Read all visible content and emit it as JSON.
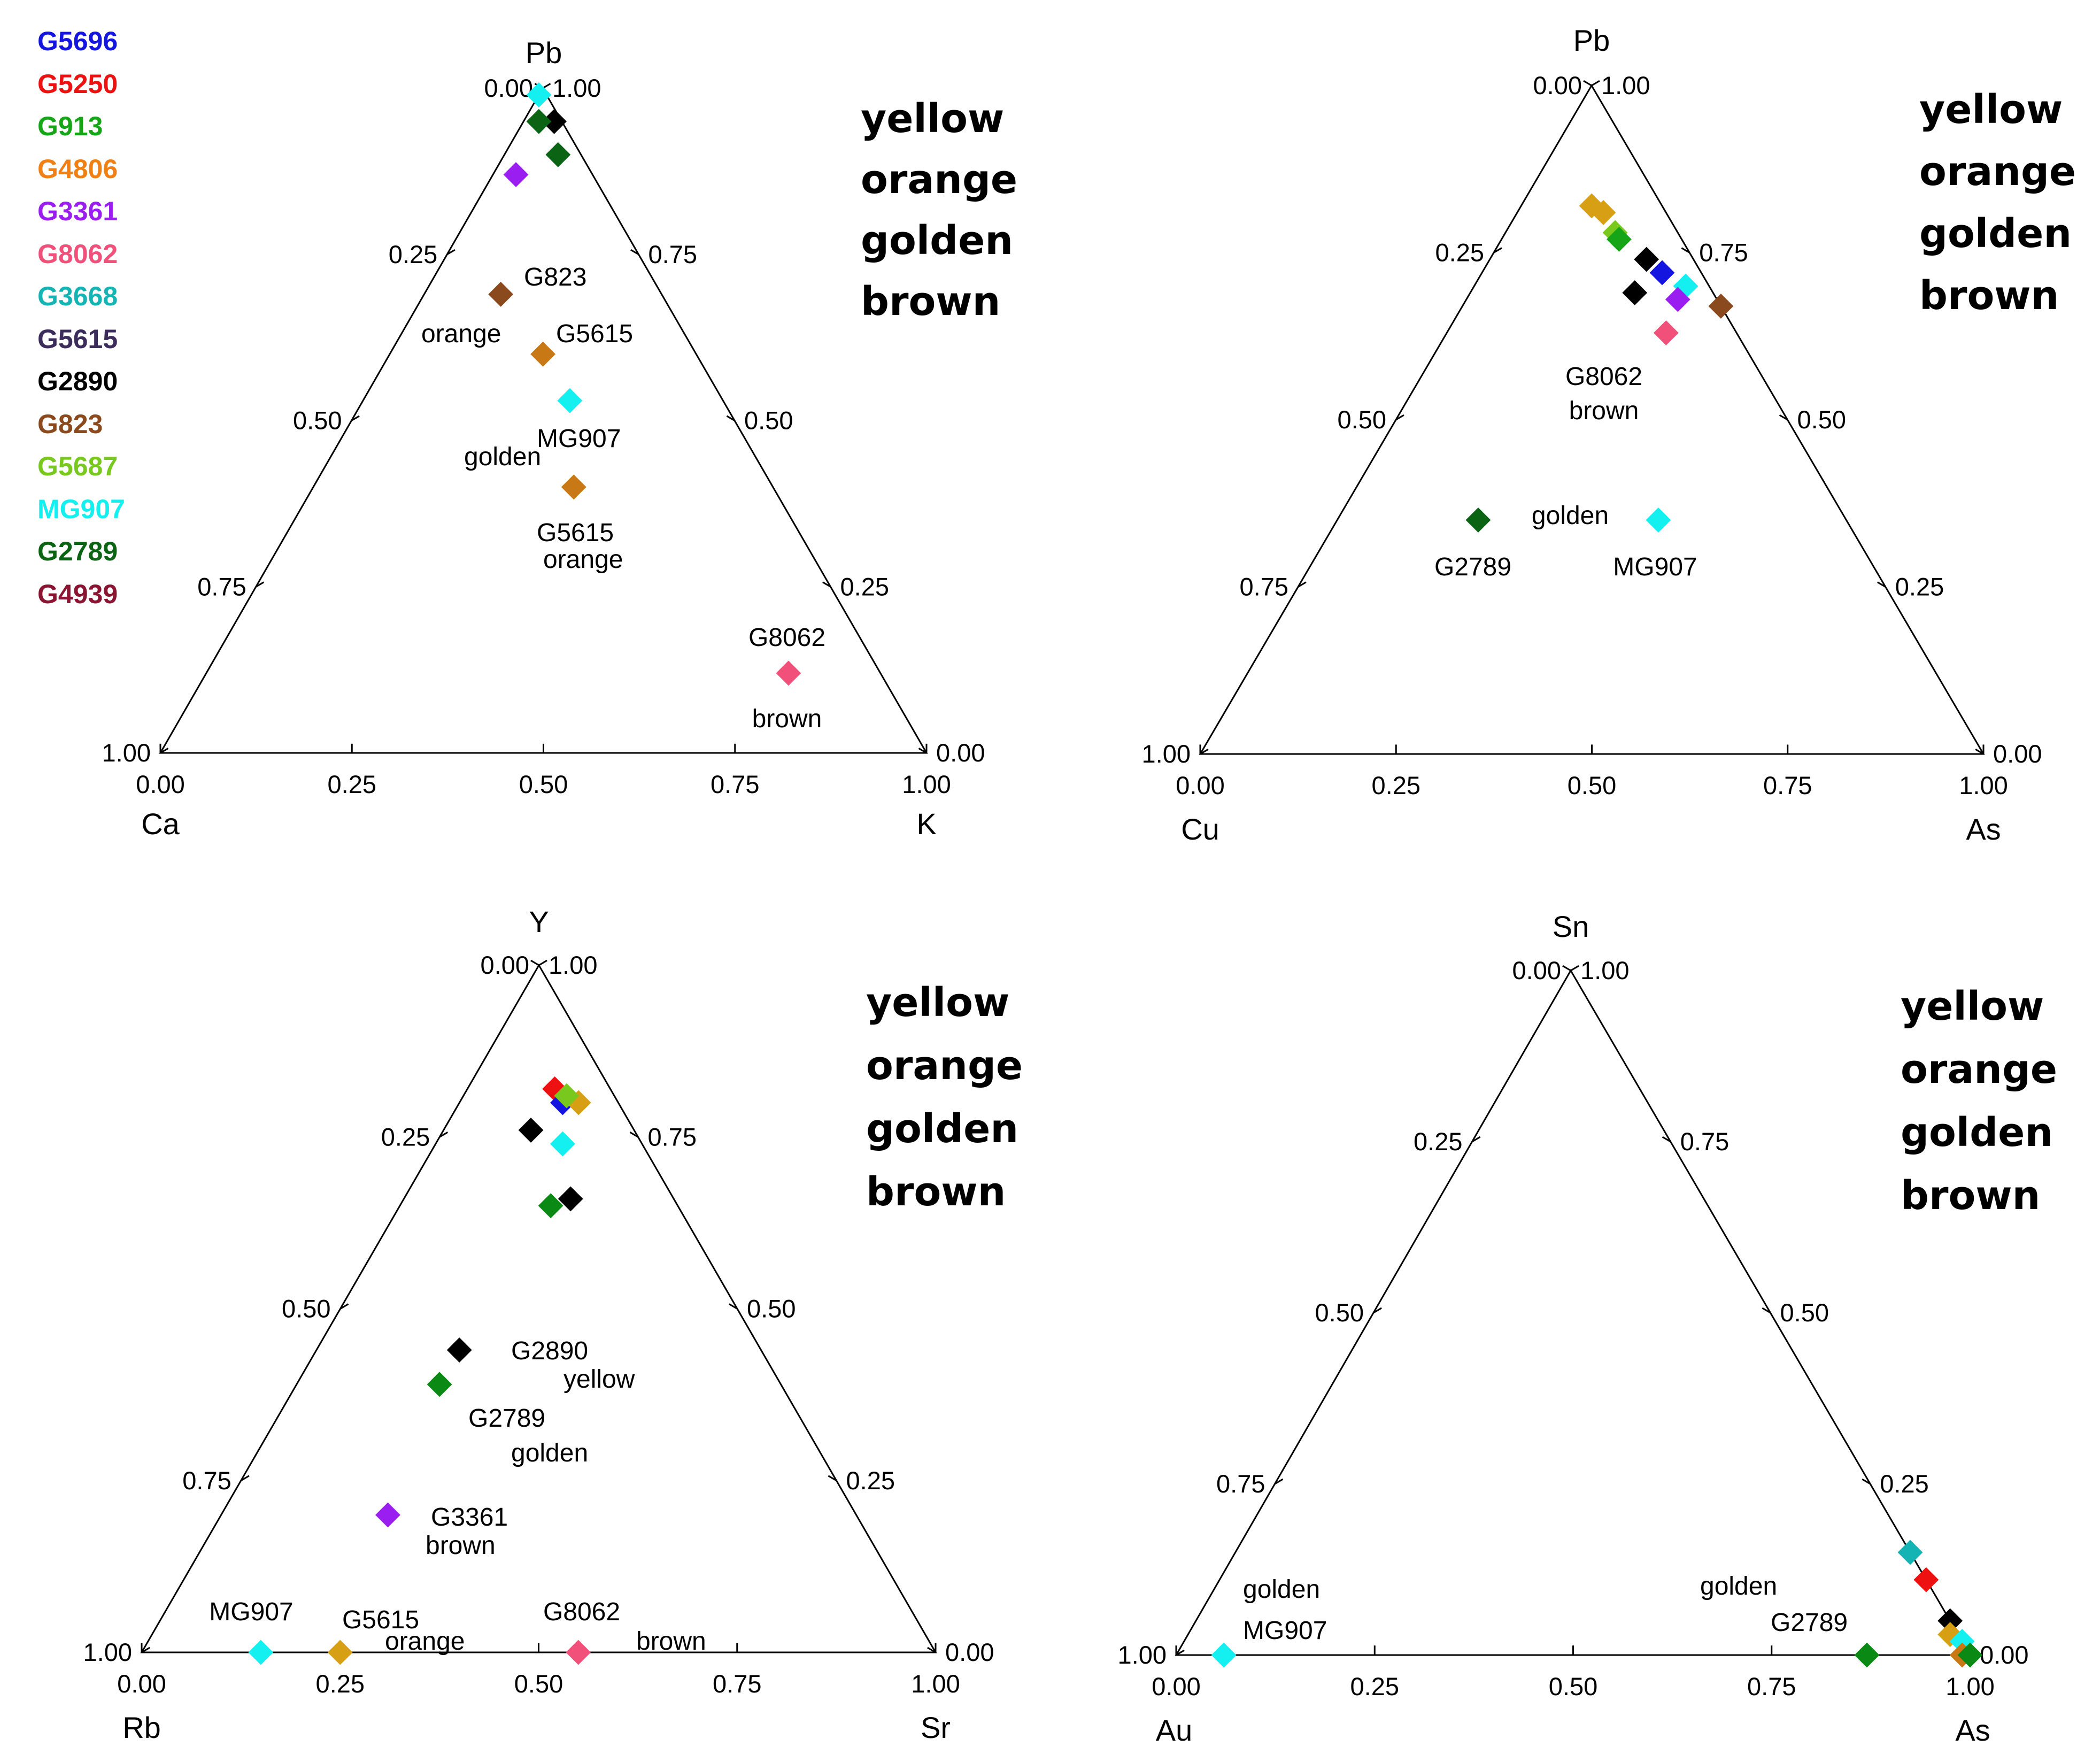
{
  "series_legend": [
    {
      "name": "G5696",
      "color": "#1515e0"
    },
    {
      "name": "G5250",
      "color": "#ee1111"
    },
    {
      "name": "G913",
      "color": "#16a516"
    },
    {
      "name": "G4806",
      "color": "#f07f14"
    },
    {
      "name": "G3361",
      "color": "#9b1ef0"
    },
    {
      "name": "G8062",
      "color": "#f0507a"
    },
    {
      "name": "G3668",
      "color": "#15b4b4"
    },
    {
      "name": "G5615",
      "color": "#3c2c5c"
    },
    {
      "name": "G2890",
      "color": "#000000"
    },
    {
      "name": "G823",
      "color": "#8b4a1e"
    },
    {
      "name": "G5687",
      "color": "#78c81e"
    },
    {
      "name": "MG907",
      "color": "#14f0f0"
    },
    {
      "name": "G2789",
      "color": "#0a6414"
    },
    {
      "name": "G4939",
      "color": "#8b1432"
    }
  ],
  "chart_data": [
    {
      "type": "scatter",
      "subtype": "ternary",
      "vertices": {
        "top": "Pb",
        "left": "Ca",
        "right": "K"
      },
      "ticks": [
        "0.00",
        "0.25",
        "0.50",
        "0.75",
        "1.00"
      ],
      "note": "each point: fractions [Pb, Ca, K]",
      "points": [
        {
          "series": "MG907",
          "color": "#14f0f0",
          "comp": [
            0.99,
            0.01,
            0.0
          ]
        },
        {
          "series": "G2890",
          "color": "#000000",
          "comp": [
            0.95,
            0.01,
            0.04
          ]
        },
        {
          "series": "G2789",
          "color": "#0a6414",
          "comp": [
            0.95,
            0.03,
            0.02
          ]
        },
        {
          "series": "G2789",
          "color": "#0a6414",
          "comp": [
            0.9,
            0.03,
            0.07
          ]
        },
        {
          "series": "G3361",
          "color": "#9b1ef0",
          "comp": [
            0.87,
            0.1,
            0.03
          ]
        },
        {
          "series": "G823",
          "color": "#8b4a1e",
          "comp": [
            0.69,
            0.21,
            0.1
          ]
        },
        {
          "series": "G5615",
          "color": "#c87814",
          "comp": [
            0.6,
            0.2,
            0.2
          ]
        },
        {
          "series": "MG907",
          "color": "#14f0f0",
          "comp": [
            0.53,
            0.2,
            0.27
          ]
        },
        {
          "series": "G5615",
          "color": "#c87814",
          "comp": [
            0.4,
            0.26,
            0.34
          ]
        },
        {
          "series": "G8062",
          "color": "#f0507a",
          "comp": [
            0.12,
            0.12,
            0.76
          ]
        }
      ],
      "annotations": [
        "G823",
        "orange",
        "G5615",
        "MG907",
        "golden",
        "G5615",
        "orange",
        "G8062",
        "brown"
      ],
      "words": [
        "yellow",
        "orange",
        "golden",
        "brown"
      ]
    },
    {
      "type": "scatter",
      "subtype": "ternary",
      "vertices": {
        "top": "Pb",
        "left": "Cu",
        "right": "As"
      },
      "ticks": [
        "0.00",
        "0.25",
        "0.50",
        "0.75",
        "1.00"
      ],
      "note": "each point: fractions [Pb, Cu, As]",
      "points": [
        {
          "series": "G4806",
          "color": "#d7a014",
          "comp": [
            0.82,
            0.09,
            0.09
          ]
        },
        {
          "series": "G4806",
          "color": "#d7a014",
          "comp": [
            0.81,
            0.08,
            0.11
          ]
        },
        {
          "series": "G5687",
          "color": "#78c81e",
          "comp": [
            0.78,
            0.08,
            0.14
          ]
        },
        {
          "series": "G913",
          "color": "#16a516",
          "comp": [
            0.77,
            0.08,
            0.15
          ]
        },
        {
          "series": "G5696",
          "color": "#1515e0",
          "comp": [
            0.72,
            0.05,
            0.23
          ]
        },
        {
          "series": "G2890",
          "color": "#000000",
          "comp": [
            0.74,
            0.06,
            0.2
          ]
        },
        {
          "series": "MG907",
          "color": "#14f0f0",
          "comp": [
            0.7,
            0.03,
            0.27
          ]
        },
        {
          "series": "G2890",
          "color": "#000000",
          "comp": [
            0.69,
            0.1,
            0.21
          ]
        },
        {
          "series": "G3361",
          "color": "#9b1ef0",
          "comp": [
            0.68,
            0.05,
            0.27
          ]
        },
        {
          "series": "G823",
          "color": "#8b4a1e",
          "comp": [
            0.67,
            0.0,
            0.33
          ]
        },
        {
          "series": "G8062",
          "color": "#f0507a",
          "comp": [
            0.63,
            0.09,
            0.28
          ]
        },
        {
          "series": "G2789",
          "color": "#0a6414",
          "comp": [
            0.35,
            0.47,
            0.18
          ]
        },
        {
          "series": "MG907",
          "color": "#14f0f0",
          "comp": [
            0.35,
            0.24,
            0.41
          ]
        }
      ],
      "annotations": [
        "G8062",
        "brown",
        "G2789",
        "golden",
        "MG907"
      ],
      "words": [
        "yellow",
        "orange",
        "golden",
        "brown"
      ]
    },
    {
      "type": "scatter",
      "subtype": "ternary",
      "vertices": {
        "top": "Y",
        "left": "Rb",
        "right": "Sr"
      },
      "ticks": [
        "0.00",
        "0.25",
        "0.50",
        "0.75",
        "1.00"
      ],
      "note": "each point: fractions [Y, Rb, Sr]",
      "points": [
        {
          "series": "G5250",
          "color": "#ee1111",
          "comp": [
            0.82,
            0.07,
            0.11
          ]
        },
        {
          "series": "G5696",
          "color": "#1515e0",
          "comp": [
            0.8,
            0.07,
            0.13
          ]
        },
        {
          "series": "G4806",
          "color": "#d7a014",
          "comp": [
            0.8,
            0.05,
            0.15
          ]
        },
        {
          "series": "G5687",
          "color": "#78c81e",
          "comp": [
            0.81,
            0.06,
            0.13
          ]
        },
        {
          "series": "G2890",
          "color": "#000000",
          "comp": [
            0.76,
            0.13,
            0.11
          ]
        },
        {
          "series": "MG907",
          "color": "#14f0f0",
          "comp": [
            0.74,
            0.1,
            0.16
          ]
        },
        {
          "series": "G2890",
          "color": "#000000",
          "comp": [
            0.66,
            0.13,
            0.21
          ]
        },
        {
          "series": "G2789",
          "color": "#0a8a14",
          "comp": [
            0.65,
            0.16,
            0.19
          ]
        },
        {
          "series": "G2890",
          "color": "#000000",
          "comp": [
            0.44,
            0.38,
            0.18
          ]
        },
        {
          "series": "G2789",
          "color": "#0a8a14",
          "comp": [
            0.39,
            0.43,
            0.18
          ]
        },
        {
          "series": "G3361",
          "color": "#9b1ef0",
          "comp": [
            0.2,
            0.59,
            0.21
          ]
        },
        {
          "series": "MG907",
          "color": "#14f0f0",
          "comp": [
            0.0,
            0.85,
            0.15
          ]
        },
        {
          "series": "G5615",
          "color": "#d7a014",
          "comp": [
            0.0,
            0.75,
            0.25
          ]
        },
        {
          "series": "G8062",
          "color": "#f0507a",
          "comp": [
            0.0,
            0.45,
            0.55
          ]
        }
      ],
      "annotations": [
        "G2890",
        "yellow",
        "G2789",
        "golden",
        "G3361",
        "brown",
        "MG907",
        "G5615",
        "orange",
        "G8062",
        "brown"
      ],
      "words": [
        "yellow",
        "orange",
        "golden",
        "brown"
      ]
    },
    {
      "type": "scatter",
      "subtype": "ternary",
      "vertices": {
        "top": "Sn",
        "left": "Au",
        "right": "As"
      },
      "ticks": [
        "0.00",
        "0.25",
        "0.50",
        "0.75",
        "1.00"
      ],
      "note": "each point: fractions [Sn, Au, As]",
      "points": [
        {
          "series": "G3668",
          "color": "#15b4b4",
          "comp": [
            0.15,
            0.0,
            0.85
          ]
        },
        {
          "series": "G5250",
          "color": "#ee1111",
          "comp": [
            0.11,
            0.0,
            0.89
          ]
        },
        {
          "series": "G2890",
          "color": "#000000",
          "comp": [
            0.05,
            0.0,
            0.95
          ]
        },
        {
          "series": "G4806",
          "color": "#d7a014",
          "comp": [
            0.03,
            0.01,
            0.96
          ]
        },
        {
          "series": "MG907",
          "color": "#14f0f0",
          "comp": [
            0.02,
            0.0,
            0.98
          ]
        },
        {
          "series": "G823",
          "color": "#c87814",
          "comp": [
            0.0,
            0.01,
            0.99
          ]
        },
        {
          "series": "G2789",
          "color": "#0a8a14",
          "comp": [
            0.0,
            0.0,
            1.0
          ]
        },
        {
          "series": "G2789",
          "color": "#0a8a14",
          "comp": [
            0.0,
            0.13,
            0.87
          ]
        },
        {
          "series": "MG907",
          "color": "#14f0f0",
          "comp": [
            0.0,
            0.94,
            0.06
          ]
        }
      ],
      "annotations": [
        "golden",
        "MG907",
        "golden",
        "G2789"
      ],
      "words": [
        "yellow",
        "orange",
        "golden",
        "brown"
      ]
    }
  ]
}
